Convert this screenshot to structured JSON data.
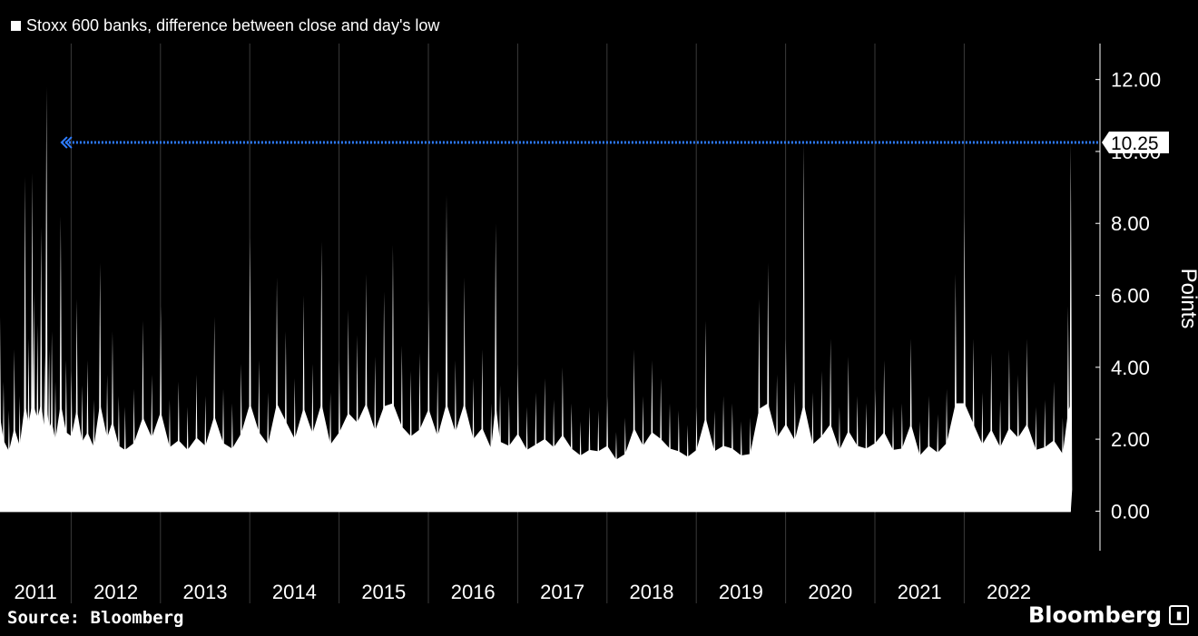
{
  "colors": {
    "background": "#000000",
    "series": "#ffffff",
    "reference_line": "#2e7dff"
  },
  "legend": {
    "label": "Stoxx 600 banks, difference between close and day's low"
  },
  "source": "Source: Bloomberg",
  "brand": "Bloomberg",
  "brand_icon": "bar-chart-icon",
  "chart_data": {
    "type": "area",
    "ylabel": "Points",
    "ylim": [
      -1.1,
      13.0
    ],
    "yticks": [
      "0.00",
      "2.00",
      "4.00",
      "6.00",
      "8.00",
      "10.00",
      "12.00"
    ],
    "years": [
      "2011",
      "2012",
      "2013",
      "2014",
      "2015",
      "2016",
      "2017",
      "2018",
      "2019",
      "2020",
      "2021",
      "2022"
    ],
    "x_range": [
      2011.0,
      2022.99
    ],
    "grid": {
      "vertical": true,
      "horizontal": false
    },
    "reference_line": {
      "value": 10.25,
      "label": "10.25",
      "start": 2011.69
    },
    "series": [
      {
        "name": "Stoxx 600 banks, difference between close and day's low",
        "x": [
          2011.0,
          2011.04,
          2011.1,
          2011.16,
          2011.22,
          2011.28,
          2011.32,
          2011.36,
          2011.38,
          2011.42,
          2011.46,
          2011.5,
          2011.52,
          2011.55,
          2011.58,
          2011.62,
          2011.68,
          2011.74,
          2011.8,
          2011.86,
          2011.92,
          2011.98,
          2012.05,
          2012.12,
          2012.2,
          2012.26,
          2012.33,
          2012.4,
          2012.5,
          2012.6,
          2012.7,
          2012.8,
          2012.9,
          2013.0,
          2013.1,
          2013.2,
          2013.3,
          2013.4,
          2013.5,
          2013.6,
          2013.7,
          2013.8,
          2013.9,
          2014.0,
          2014.1,
          2014.2,
          2014.3,
          2014.4,
          2014.5,
          2014.6,
          2014.7,
          2014.8,
          2014.9,
          2015.0,
          2015.1,
          2015.2,
          2015.3,
          2015.4,
          2015.5,
          2015.6,
          2015.7,
          2015.8,
          2015.9,
          2016.0,
          2016.1,
          2016.2,
          2016.3,
          2016.4,
          2016.5,
          2016.55,
          2016.6,
          2016.7,
          2016.8,
          2016.9,
          2017.0,
          2017.1,
          2017.2,
          2017.3,
          2017.4,
          2017.5,
          2017.6,
          2017.7,
          2017.8,
          2017.9,
          2018.0,
          2018.1,
          2018.2,
          2018.3,
          2018.4,
          2018.5,
          2018.6,
          2018.7,
          2018.8,
          2018.9,
          2019.0,
          2019.1,
          2019.2,
          2019.3,
          2019.4,
          2019.5,
          2019.6,
          2019.7,
          2019.8,
          2019.9,
          2020.0,
          2020.1,
          2020.2,
          2020.3,
          2020.4,
          2020.5,
          2020.6,
          2020.7,
          2020.8,
          2020.9,
          2021.0,
          2021.1,
          2021.2,
          2021.3,
          2021.4,
          2021.5,
          2021.6,
          2021.7,
          2021.8,
          2021.9,
          2022.0,
          2022.1,
          2022.2,
          2022.3,
          2022.4,
          2022.5,
          2022.6,
          2022.7,
          2022.8,
          2022.9,
          2022.96,
          2022.99
        ],
        "values": [
          5.4,
          3.6,
          2.8,
          4.5,
          3.2,
          9.3,
          4.8,
          9.4,
          6.1,
          5.2,
          7.9,
          4.4,
          11.8,
          4.5,
          5.0,
          3.6,
          8.2,
          4.2,
          3.9,
          5.9,
          3.5,
          4.2,
          3.1,
          6.9,
          3.8,
          5.0,
          3.2,
          2.9,
          3.4,
          5.3,
          3.8,
          5.7,
          3.1,
          3.6,
          2.9,
          3.8,
          3.2,
          5.4,
          3.4,
          3.0,
          4.1,
          7.6,
          4.2,
          3.3,
          6.5,
          5.0,
          3.7,
          6.0,
          4.1,
          7.5,
          3.3,
          4.2,
          5.6,
          4.9,
          6.6,
          4.3,
          6.1,
          7.4,
          4.6,
          3.9,
          4.4,
          5.9,
          3.9,
          8.8,
          4.2,
          6.5,
          3.7,
          4.5,
          3.0,
          8.0,
          3.5,
          3.2,
          4.1,
          2.9,
          3.3,
          3.7,
          3.1,
          4.0,
          3.0,
          2.5,
          2.9,
          2.8,
          3.2,
          2.2,
          2.6,
          4.5,
          3.2,
          4.2,
          3.7,
          3.0,
          2.8,
          2.4,
          2.9,
          5.3,
          2.8,
          3.2,
          3.0,
          2.5,
          2.6,
          5.9,
          6.9,
          3.8,
          4.8,
          3.6,
          10.25,
          3.3,
          3.9,
          4.8,
          2.9,
          4.3,
          3.2,
          3.0,
          3.4,
          4.2,
          2.9,
          3.0,
          4.8,
          2.5,
          3.2,
          2.7,
          3.4,
          6.6,
          8.3,
          4.8,
          3.3,
          4.4,
          3.1,
          4.5,
          3.8,
          4.8,
          2.9,
          3.1,
          3.6,
          2.6,
          5.7,
          10.25
        ]
      }
    ]
  }
}
